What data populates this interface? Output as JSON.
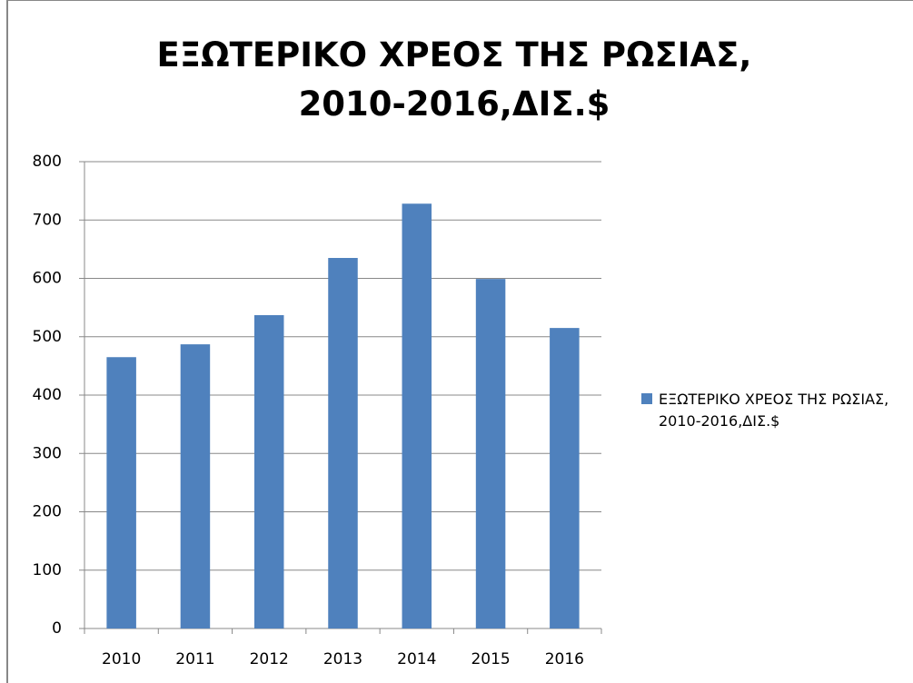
{
  "chart_data": {
    "type": "bar",
    "title": "ΕΞΩΤΕΡΙΚΟ ΧΡΕΟΣ ΤΗΣ ΡΩΣΙΑΣ, 2010-2016,ΔΙΣ.$",
    "categories": [
      "2010",
      "2011",
      "2012",
      "2013",
      "2014",
      "2015",
      "2016"
    ],
    "series": [
      {
        "name": "ΕΞΩΤΕΡΙΚΟ ΧΡΕΟΣ ΤΗΣ ΡΩΣΙΑΣ, 2010-2016,ΔΙΣ.$",
        "color": "#4f81bd",
        "values": [
          465,
          487,
          537,
          635,
          728,
          599,
          515
        ]
      }
    ],
    "ylim": [
      0,
      800
    ],
    "yticks": [
      0,
      100,
      200,
      300,
      400,
      500,
      600,
      700,
      800
    ],
    "grid": true,
    "legend": "right"
  }
}
